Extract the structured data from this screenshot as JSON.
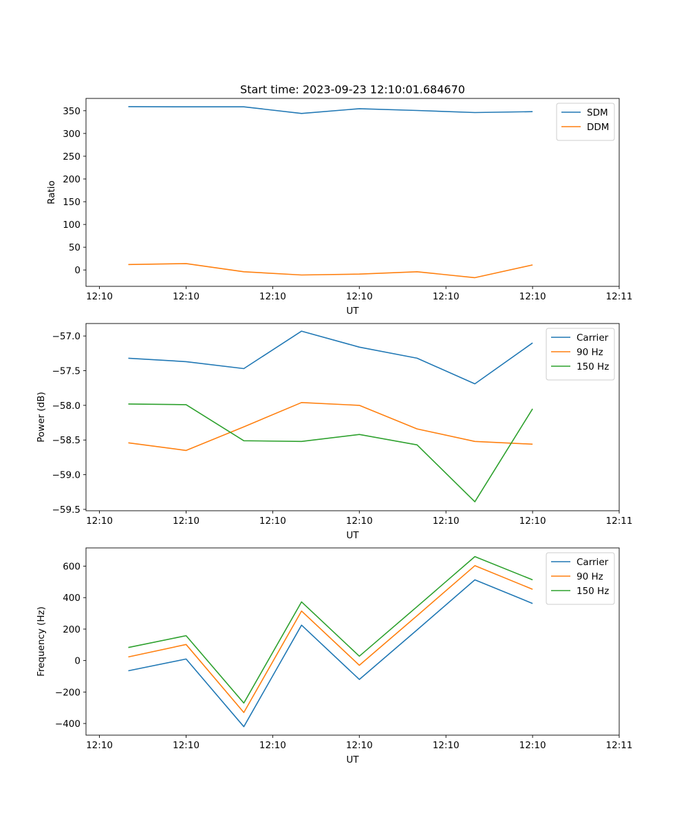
{
  "title": "Start time: 2023-09-23 12:10:01.684670",
  "colors": {
    "blue": "#1f77b4",
    "orange": "#ff7f0e",
    "green": "#2ca02c"
  },
  "chart_data": [
    {
      "type": "line",
      "title": "Start time: 2023-09-23 12:10:01.684670",
      "xlabel": "UT",
      "ylabel": "Ratio",
      "x": [
        1,
        2,
        3,
        4,
        5,
        6,
        7,
        8
      ],
      "xlim": [
        0.267,
        9.5
      ],
      "x_ticks": [
        0.5,
        2,
        3.5,
        5,
        6.5,
        8,
        9.5
      ],
      "x_tick_labels": [
        "12:10",
        "12:10",
        "12:10",
        "12:10",
        "12:10",
        "12:10",
        "12:11"
      ],
      "ylim": [
        -36,
        377
      ],
      "y_ticks": [
        0,
        50,
        100,
        150,
        200,
        250,
        300,
        350
      ],
      "y_tick_labels": [
        "0",
        "50",
        "100",
        "150",
        "200",
        "250",
        "300",
        "350"
      ],
      "legend": "top-right",
      "series": [
        {
          "name": "SDM",
          "color": "#1f77b4",
          "values": [
            359,
            358.5,
            358.5,
            344,
            354.5,
            350.5,
            346,
            348
          ]
        },
        {
          "name": "DDM",
          "color": "#ff7f0e",
          "values": [
            12,
            14,
            -4,
            -11,
            -9,
            -4,
            -17,
            11
          ]
        }
      ]
    },
    {
      "type": "line",
      "title": "",
      "xlabel": "UT",
      "ylabel": "Power (dB)",
      "x": [
        1,
        2,
        3,
        4,
        5,
        6,
        7,
        8
      ],
      "xlim": [
        0.267,
        9.5
      ],
      "x_ticks": [
        0.5,
        2,
        3.5,
        5,
        6.5,
        8,
        9.5
      ],
      "x_tick_labels": [
        "12:10",
        "12:10",
        "12:10",
        "12:10",
        "12:10",
        "12:10",
        "12:11"
      ],
      "ylim": [
        -59.52,
        -56.82
      ],
      "y_ticks": [
        -59.5,
        -59.0,
        -58.5,
        -58.0,
        -57.5,
        -57.0
      ],
      "y_tick_labels": [
        "−59.5",
        "−59.0",
        "−58.5",
        "−58.0",
        "−57.5",
        "−57.0"
      ],
      "legend": "top-right",
      "series": [
        {
          "name": "Carrier",
          "color": "#1f77b4",
          "values": [
            -57.32,
            -57.37,
            -57.47,
            -56.93,
            -57.16,
            -57.32,
            -57.69,
            -57.1
          ]
        },
        {
          "name": "90 Hz",
          "color": "#ff7f0e",
          "values": [
            -58.54,
            -58.65,
            -58.31,
            -57.96,
            -58.0,
            -58.34,
            -58.52,
            -58.56
          ]
        },
        {
          "name": "150 Hz",
          "color": "#2ca02c",
          "values": [
            -57.98,
            -57.99,
            -58.51,
            -58.52,
            -58.42,
            -58.57,
            -59.39,
            -58.05
          ]
        }
      ]
    },
    {
      "type": "line",
      "title": "",
      "xlabel": "UT",
      "ylabel": "Frequency (Hz)",
      "x": [
        1,
        2,
        3,
        4,
        5,
        6,
        7,
        8
      ],
      "xlim": [
        0.267,
        9.5
      ],
      "x_ticks": [
        0.5,
        2,
        3.5,
        5,
        6.5,
        8,
        9.5
      ],
      "x_tick_labels": [
        "12:10",
        "12:10",
        "12:10",
        "12:10",
        "12:10",
        "12:10",
        "12:11"
      ],
      "ylim": [
        -474,
        716
      ],
      "y_ticks": [
        -400,
        -200,
        0,
        200,
        400,
        600
      ],
      "y_tick_labels": [
        "−400",
        "−200",
        "0",
        "200",
        "400",
        "600"
      ],
      "legend": "top-right",
      "series": [
        {
          "name": "Carrier",
          "color": "#1f77b4",
          "values": [
            -65,
            10,
            -420,
            225,
            -120,
            195,
            513,
            363
          ]
        },
        {
          "name": "90 Hz",
          "color": "#ff7f0e",
          "values": [
            23,
            102,
            -330,
            315,
            -30,
            285,
            603,
            453
          ]
        },
        {
          "name": "150 Hz",
          "color": "#2ca02c",
          "values": [
            83,
            158,
            -270,
            373,
            28,
            343,
            661,
            513
          ]
        }
      ]
    }
  ]
}
